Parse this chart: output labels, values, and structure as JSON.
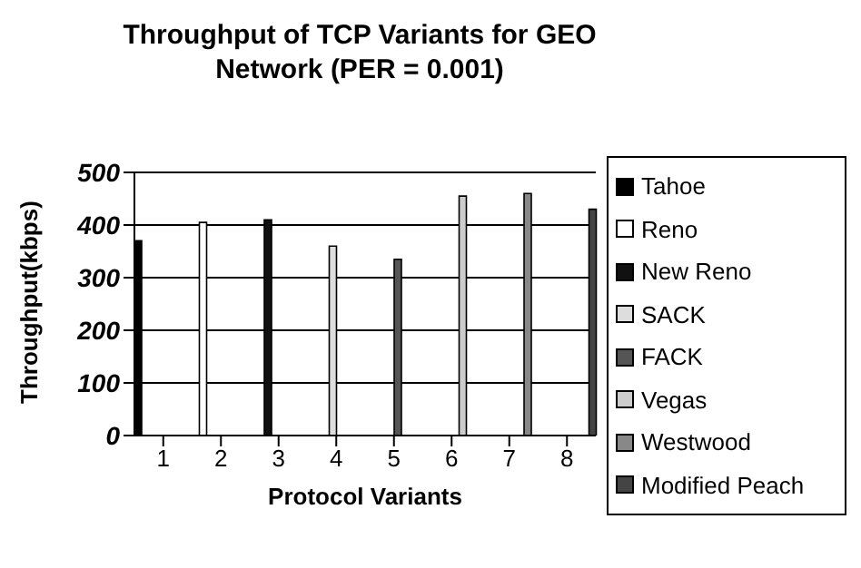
{
  "chart_data": {
    "type": "bar",
    "title": "Throughput of TCP Variants for GEO Network (PER = 0.001)",
    "xlabel": "Protocol Variants",
    "ylabel": "Throughput(kbps)",
    "categories": [
      "1",
      "2",
      "3",
      "4",
      "5",
      "6",
      "7",
      "8"
    ],
    "ylim": [
      0,
      500
    ],
    "yticks": [
      0,
      100,
      200,
      300,
      400,
      500
    ],
    "grid": "y",
    "legend": "right",
    "series": [
      {
        "name": "Tahoe",
        "color": "#000000",
        "values": [
          370,
          null,
          null,
          null,
          null,
          null,
          null,
          null
        ]
      },
      {
        "name": "Reno",
        "color": "#ffffff",
        "values": [
          null,
          405,
          null,
          null,
          null,
          null,
          null,
          null
        ]
      },
      {
        "name": "New Reno",
        "color": "#111111",
        "values": [
          null,
          null,
          410,
          null,
          null,
          null,
          null,
          null
        ]
      },
      {
        "name": "SACK",
        "color": "#dddddd",
        "values": [
          null,
          null,
          null,
          360,
          null,
          null,
          null,
          null
        ]
      },
      {
        "name": "FACK",
        "color": "#555555",
        "values": [
          null,
          null,
          null,
          null,
          335,
          null,
          null,
          null
        ]
      },
      {
        "name": "Vegas",
        "color": "#cccccc",
        "values": [
          null,
          null,
          null,
          null,
          null,
          455,
          null,
          null
        ]
      },
      {
        "name": "Westwood",
        "color": "#888888",
        "values": [
          null,
          null,
          null,
          null,
          null,
          null,
          460,
          null
        ]
      },
      {
        "name": "Modified Peach",
        "color": "#444444",
        "values": [
          null,
          null,
          null,
          null,
          null,
          null,
          null,
          430
        ]
      }
    ]
  }
}
